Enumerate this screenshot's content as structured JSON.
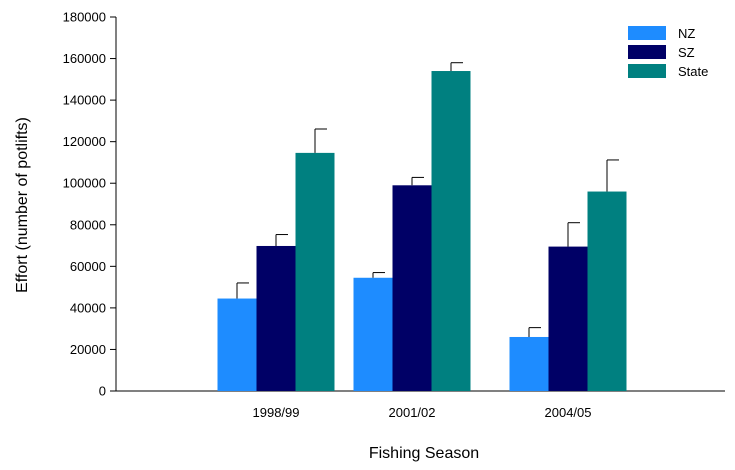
{
  "chart_data": {
    "type": "bar",
    "xlabel": "Fishing Season",
    "ylabel": "Effort (number of potlifts)",
    "ylim": [
      0,
      180000
    ],
    "yticks": [
      0,
      20000,
      40000,
      60000,
      80000,
      100000,
      120000,
      140000,
      160000,
      180000
    ],
    "yticks_labels": [
      "0",
      "20000",
      "40000",
      "60000",
      "80000",
      "100000",
      "120000",
      "140000",
      "160000",
      "180000"
    ],
    "categories": [
      "1998/99",
      "2001/02",
      "2004/05"
    ],
    "grid": false,
    "legend_position": "top-right",
    "series": [
      {
        "name": "NZ",
        "color": "#1E8CFF",
        "values": [
          44500,
          54500,
          26000
        ],
        "error": [
          7500,
          2500,
          4500
        ]
      },
      {
        "name": "SZ",
        "color": "#000066",
        "values": [
          69800,
          99000,
          69500
        ],
        "error": [
          5500,
          3800,
          11500
        ]
      },
      {
        "name": "State",
        "color": "#008080",
        "values": [
          114600,
          154000,
          96000
        ],
        "error": [
          11500,
          4000,
          15200
        ]
      }
    ]
  }
}
